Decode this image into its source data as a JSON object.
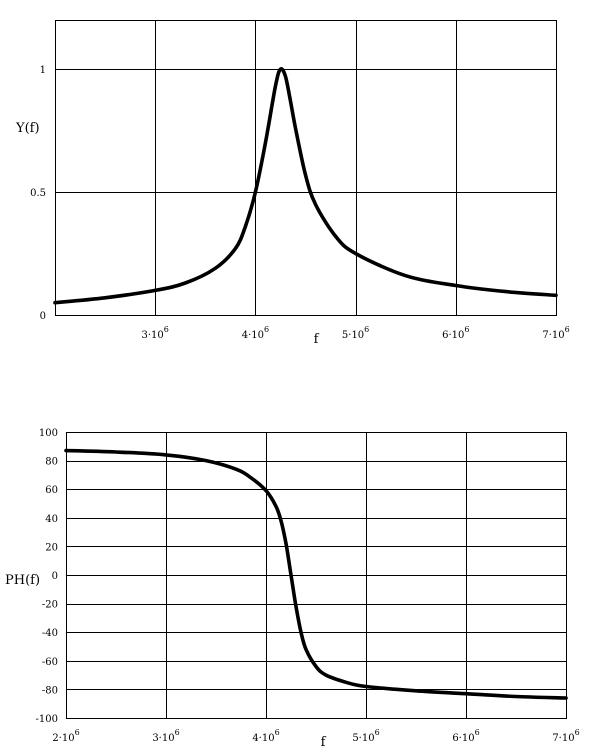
{
  "chart_data": [
    {
      "type": "line",
      "ylabel": "Y(f)",
      "xlabel": "f",
      "xlim": [
        2000000,
        7000000
      ],
      "ylim": [
        0,
        1.2
      ],
      "grid": true,
      "x_ticks": [
        {
          "value": 3000000,
          "base": "3·10",
          "exp": "6"
        },
        {
          "value": 4000000,
          "base": "4·10",
          "exp": "6"
        },
        {
          "value": 5000000,
          "base": "5·10",
          "exp": "6"
        },
        {
          "value": 6000000,
          "base": "6·10",
          "exp": "6"
        },
        {
          "value": 7000000,
          "base": "7·10",
          "exp": "6"
        }
      ],
      "y_ticks": [
        {
          "value": 0,
          "label": "0"
        },
        {
          "value": 0.5,
          "label": "0.5"
        },
        {
          "value": 1,
          "label": "1"
        }
      ],
      "series": [
        {
          "x": [
            2000000,
            2500000,
            3000000,
            3300000,
            3600000,
            3800000,
            3900000,
            4000000,
            4100000,
            4200000,
            4250000,
            4300000,
            4350000,
            4400000,
            4500000,
            4600000,
            4800000,
            5000000,
            5500000,
            6000000,
            6500000,
            7000000
          ],
          "values": [
            0.05,
            0.07,
            0.1,
            0.13,
            0.19,
            0.27,
            0.36,
            0.5,
            0.7,
            0.93,
            1.0,
            0.97,
            0.87,
            0.76,
            0.57,
            0.45,
            0.32,
            0.25,
            0.16,
            0.12,
            0.095,
            0.08
          ]
        }
      ]
    },
    {
      "type": "line",
      "ylabel": "PH(f)",
      "xlabel": "f",
      "xlim": [
        2000000,
        7000000
      ],
      "ylim": [
        -100,
        100
      ],
      "grid": true,
      "x_ticks": [
        {
          "value": 2000000,
          "base": "2·10",
          "exp": "6"
        },
        {
          "value": 3000000,
          "base": "3·10",
          "exp": "6"
        },
        {
          "value": 4000000,
          "base": "4·10",
          "exp": "6"
        },
        {
          "value": 5000000,
          "base": "5·10",
          "exp": "6"
        },
        {
          "value": 6000000,
          "base": "6·10",
          "exp": "6"
        },
        {
          "value": 7000000,
          "base": "7·10",
          "exp": "6"
        }
      ],
      "y_ticks": [
        {
          "value": 100,
          "label": "100"
        },
        {
          "value": 80,
          "label": "80"
        },
        {
          "value": 60,
          "label": "60"
        },
        {
          "value": 40,
          "label": "40"
        },
        {
          "value": 20,
          "label": "20"
        },
        {
          "value": 0,
          "label": "0"
        },
        {
          "value": -20,
          "label": "-20"
        },
        {
          "value": -40,
          "label": "-40"
        },
        {
          "value": -60,
          "label": "-60"
        },
        {
          "value": -80,
          "label": "-80"
        },
        {
          "value": -100,
          "label": "-100"
        }
      ],
      "series": [
        {
          "x": [
            2000000,
            2500000,
            3000000,
            3400000,
            3700000,
            3850000,
            4000000,
            4100000,
            4150000,
            4200000,
            4250000,
            4300000,
            4350000,
            4400000,
            4500000,
            4600000,
            4800000,
            5000000,
            5500000,
            6000000,
            6500000,
            7000000
          ],
          "values": [
            87,
            86,
            84,
            80,
            74,
            68,
            59,
            48,
            38,
            22,
            0,
            -22,
            -40,
            -52,
            -64,
            -70,
            -75,
            -78,
            -81,
            -83,
            -85,
            -86
          ]
        }
      ]
    }
  ]
}
